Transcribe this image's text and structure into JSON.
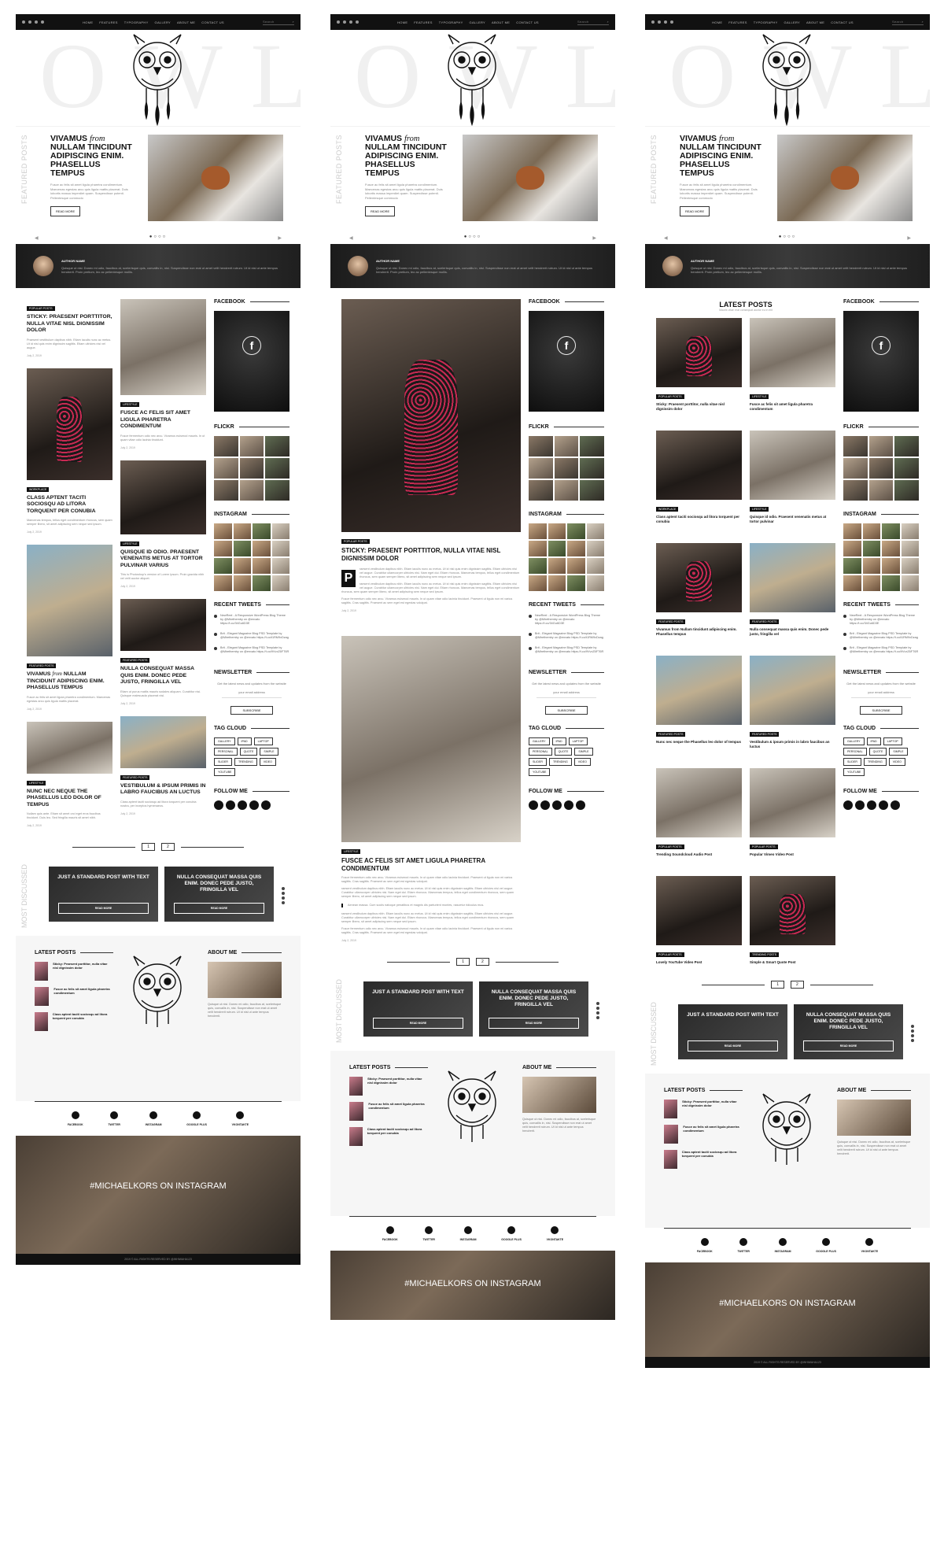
{
  "nav": {
    "menu": [
      "HOME",
      "FEATURES",
      "TYPOGRAPHY",
      "GALLERY",
      "ABOUT ME",
      "CONTACT US"
    ],
    "search_placeholder": "Search"
  },
  "logo": {
    "word": "OWL"
  },
  "featured": {
    "side_label": "FEATURED POSTS",
    "title_a": "VIVAMUS",
    "title_em": "from",
    "title_b": "NULLAM TINCIDUNT ADIPISCING ENIM. PHASELLUS TEMPUS",
    "excerpt": "Fusce ac felis sit amet ligula pharetra condimentum. Maecenas egestas arcu quis ligula mattis placerat. Duis lobortis massa imperdiet quam. Suspendisse potenti. Pellentesque commodo",
    "button": "READ MORE"
  },
  "author": {
    "name": "AUTHOR NAME",
    "bio": "Quisque ut nisi. Donec mi odio, faucibus at, scelerisque quis, convallis in, nisi. Suspendisse non erat ut amet velit hendrerit rutrum. Ut id nisl ut ante tempus hendrerit. Proin pretium, leo ac pellentesque mollis."
  },
  "sidebar": {
    "facebook": "FACEBOOK",
    "flickr": "FLICKR",
    "instagram": "INSTAGRAM",
    "recent_tweets": "RECENT TWEETS",
    "tweets": [
      "NewReel - A Responsive WordPress Blog Theme by @Mirethemby on @envato https://t.co/34Gu6D3E",
      "Brit - Elegant Magazine Blog PSD Template by @Mirethemby on @envato https://t.co/t1RM9xDzag",
      "Brit - Elegant Magazine Blog PSD Template by @Mirethemby on @envato https://t.co/9VvxZ6FT6R"
    ],
    "newsletter": "NEWSLETTER",
    "newsletter_text": "Get the latest news and updates from the website",
    "email_placeholder": "your email address",
    "subscribe": "SUBSCRIBE",
    "tag_cloud": "TAG CLOUD",
    "tags": [
      "GALLERY",
      "IPAD",
      "LAPTOP",
      "PERSONAL",
      "QUOTE",
      "SIMPLE",
      "SLIDER",
      "TRENDING",
      "VIDEO",
      "YOUTUBE"
    ],
    "follow_me": "FOLLOW ME"
  },
  "posts": {
    "p1": {
      "tag": "POPULAR POSTS",
      "title": "STICKY: PRAESENT PORTTITOR, NULLA VITAE NISL DIGNISSIM DOLOR",
      "excerpt": "Praesent vestibulum dapibus nibh. Etiam iaculis nunc ac metus. Ut id nisl quis enim dignissim sagittis. Etiam ultricies nisi vel augue.",
      "meta": "July 2, 2019"
    },
    "p2": {
      "tag": "LIFESTYLE",
      "title": "FUSCE AC FELIS SIT AMET LIGULA PHARETRA CONDIMENTUM",
      "excerpt": "Fusce fermentum odio nec arcu. Vivamus euismod mauris. In ut quam vitae odio lacinia tincidunt.",
      "meta": "July 2, 2019"
    },
    "p3": {
      "tag": "WORKPLACE",
      "title": "CLASS APTENT TACITI SOCIOSQU AD LITORA TORQUENT PER CONUBIA",
      "excerpt": "Maecenas tempus, tellus eget condimentum rhoncus, sem quam semper libero, sit amet adipiscing sem neque sed ipsum.",
      "meta": "July 2, 2019"
    },
    "p4": {
      "tag": "LIFESTYLE",
      "title": "QUISQUE ID ODIO. PRAESENT VENENATIS METUS AT TORTOR PULVINAR VARIUS",
      "excerpt": "This is Photoshop's version of Lorem Ipsum. Proin gravida nibh vel velit auctor aliquet.",
      "meta": "July 2, 2019"
    },
    "p5": {
      "tag": "FEATURED POSTS",
      "title": "NULLA CONSEQUAT MASSA QUIS ENIM. DONEC PEDE JUSTO, FRINGILLA VEL",
      "excerpt": "Etiam ut purus mattis mauris sodales aliquam. Curabitur nisi. Quisque malesuada placerat nisl.",
      "meta": "July 2, 2019"
    },
    "p6": {
      "tag": "FEATURED POSTS",
      "title_a": "VIVAMUS",
      "title_em": "from",
      "title_b": "NULLAM TINCIDUNT ADIPISCING ENIM. PHASELLUS TEMPUS",
      "excerpt": "Fusce ac felis sit amet ligula pharetra condimentum. Maecenas egestas arcu quis ligula mattis placerat.",
      "meta": "July 2, 2019"
    },
    "p7": {
      "tag": "LIFESTYLE",
      "title": "NUNC NEC NEQUE THE PHASELLUS LEO DOLOR OF TEMPUS",
      "excerpt": "Nullam quis ante. Etiam sit amet orci eget eros faucibus tincidunt. Duis leo. Sed fringilla mauris sit amet nibh.",
      "meta": "July 2, 2019"
    },
    "p8": {
      "tag": "FEATURED POSTS",
      "title": "VESTIBULUM & IPSUM PRIMIS IN LABRO FAUCIBUS AN LUCTUS",
      "excerpt": "Class aptent taciti sociosqu ad litora torquent per conubia nostra, per inceptos hymenaeos.",
      "meta": "July 2, 2019"
    }
  },
  "single": {
    "sticky_title": "STICKY: PRAESENT PORTTITOR, NULLA VITAE NISL DIGNISSIM DOLOR",
    "dropcap": "P",
    "body": "raesent vestibulum dapibus nibh. Etiam iaculis nunc ac metus. Ut id nisl quis enim dignissim sagittis. Etiam ultricies nisi vel augue. Curabitur ullamcorper ultricies nisi. Nam eget dui. Etiam rhoncus. Maecenas tempus, tellus eget condimentum rhoncus, sem quam semper libero, sit amet adipiscing sem neque sed ipsum.",
    "fusce_title": "FUSCE AC FELIS SIT AMET LIGULA PHARETRA CONDIMENTUM",
    "fusce_body": "Fusce fermentum odio nec arcu. Vivamus euismod mauris. In ut quam vitae odio lacinia tincidunt. Praesent ut ligula non mi varius sagittis. Cras sagittis. Praesent ac sem eget est egestas volutpat.",
    "quote": "Aenean massa. Cum sociis natoque penatibus et magnis dis parturient montes, nascetur ridiculus mus."
  },
  "latest": {
    "title": "LATEST POSTS",
    "subtitle": "Mauris vitae erat consequat auctor eu in elit"
  },
  "grid_posts": [
    {
      "tag": "POPULAR POSTS",
      "title": "Sticky: Praesent porttitor, nulla vitae nisl dignissim dolor"
    },
    {
      "tag": "LIFESTYLE",
      "title": "Fusce ac felis sit amet ligula pharetra condimentum"
    },
    {
      "tag": "WORKPLACE",
      "title": "Class aptent taciti sociosqu ad litora torquent per conubia"
    },
    {
      "tag": "LIFESTYLE",
      "title": "Quisque id odio. Praesent venenatis metus at tortor pulvinar"
    },
    {
      "tag": "FEATURED POSTS",
      "title": "Vivamus from Nullam tincidunt adipiscing enim. Phasellus tempus"
    },
    {
      "tag": "FEATURED POSTS",
      "title": "Nulla consequat massa quis enim. Donec pede justo, fringilla vel"
    },
    {
      "tag": "FEATURED POSTS",
      "title": "Nunc nec neque the Phasellus leo dolor of tempus"
    },
    {
      "tag": "FEATURED POSTS",
      "title": "Vestibulum & ipsum primis in labro faucibus an luctus"
    },
    {
      "tag": "POPULAR POSTS",
      "title": "Trending Soundcloud Audio Post"
    },
    {
      "tag": "POPULAR POSTS",
      "title": "Popular Vimeo Video Post"
    },
    {
      "tag": "POPULAR POSTS",
      "title": "Lovely YouTube Video Post"
    },
    {
      "tag": "TRENDING POSTS",
      "title": "Simple & Smart Quote Post"
    }
  ],
  "pager": {
    "p1": "1",
    "p2": "2"
  },
  "most_discussed": {
    "label": "MOST DISCUSSED",
    "card1": "JUST A STANDARD POST WITH TEXT",
    "card2": "NULLA CONSEQUAT MASSA QUIS ENIM. DONEC PEDE JUSTO, FRINGILLA VEL",
    "read_more": "READ MORE"
  },
  "footer": {
    "latest_posts": "LATEST POSTS",
    "about_me": "ABOUT ME",
    "items": [
      "Sticky: Praesent porttitor, nulla vitae nisl dignissim dolor",
      "Fusce ac felis sit amet ligula pharetra condimentum",
      "Class aptent taciti sociosqu ad litora torquent per conubia"
    ],
    "about": "Quisque ut nisi. Donec mi odio, faucibus at, scelerisque quis, convallis in, nisi. Suspendisse non erat ut amet velit hendrerit rutrum. Ut id nisl ut ante tempus hendrerit.",
    "social": [
      "FACEBOOK",
      "TWITTER",
      "INSTAGRAM",
      "GOOGLE PLUS",
      "VKONTAKTE"
    ],
    "instagram_tag": "#MICHAELKORS ON INSTAGRAM",
    "copyright": "2019 © ALL RIGHTS RESERVED BY @WHIWAHA123"
  }
}
